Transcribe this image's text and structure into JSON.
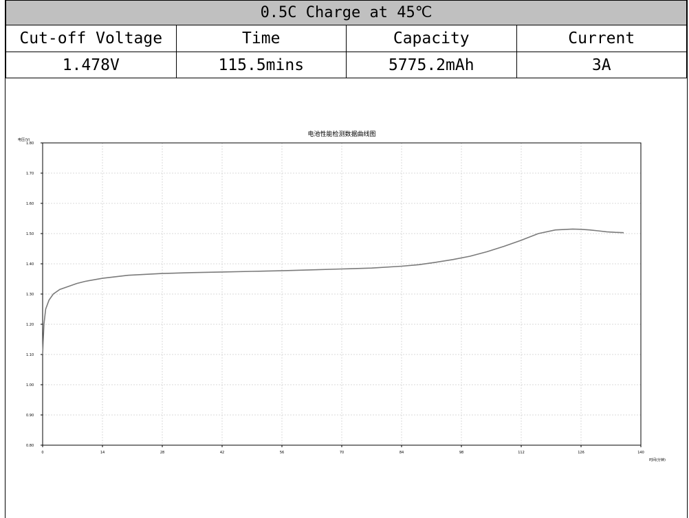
{
  "table": {
    "title": "0.5C Charge at 45℃",
    "headers": [
      "Cut-off Voltage",
      "Time",
      "Capacity",
      "Current"
    ],
    "values": [
      "1.478V",
      "115.5mins",
      "5775.2mAh",
      "3A"
    ]
  },
  "chart_data": {
    "type": "line",
    "title": "电池性能检测数据曲线图",
    "ylabel": "电压(V)",
    "xlabel": "时间(分钟)",
    "xlim": [
      0,
      140
    ],
    "ylim": [
      0.8,
      1.8
    ],
    "xticks": [
      "0",
      "14",
      "28",
      "42",
      "56",
      "70",
      "84",
      "98",
      "112",
      "126",
      "140"
    ],
    "yticks": [
      "0.80",
      "0.90",
      "1.00",
      "1.10",
      "1.20",
      "1.30",
      "1.40",
      "1.50",
      "1.60",
      "1.70",
      "1.80"
    ],
    "grid": true,
    "color": "#7a7a7a",
    "series": [
      {
        "x": [
          0,
          0.3,
          0.7,
          1.5,
          2.5,
          4,
          6,
          8,
          10,
          14,
          20,
          28,
          35,
          42,
          49,
          56,
          63,
          70,
          77,
          84,
          88,
          92,
          96,
          100,
          104,
          108,
          112,
          116,
          120,
          124,
          126,
          128,
          130,
          132,
          134,
          136
        ],
        "y": [
          1.1,
          1.2,
          1.25,
          1.28,
          1.3,
          1.315,
          1.325,
          1.335,
          1.342,
          1.352,
          1.362,
          1.368,
          1.371,
          1.373,
          1.375,
          1.377,
          1.38,
          1.383,
          1.386,
          1.392,
          1.397,
          1.405,
          1.414,
          1.425,
          1.44,
          1.458,
          1.478,
          1.5,
          1.512,
          1.515,
          1.514,
          1.512,
          1.509,
          1.506,
          1.504,
          1.503
        ]
      }
    ]
  }
}
